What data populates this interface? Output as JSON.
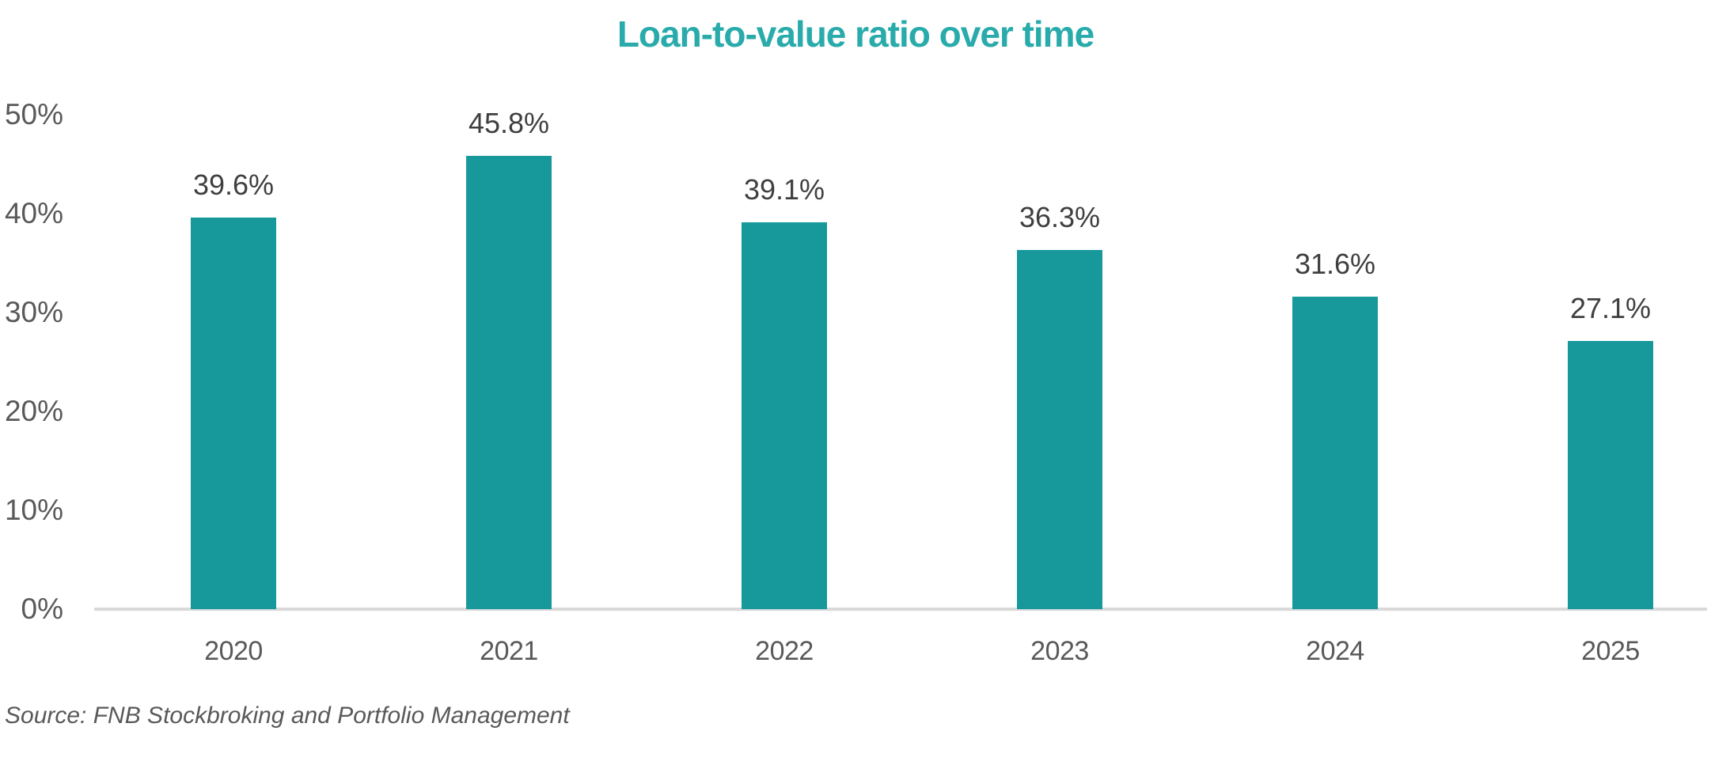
{
  "page": {
    "title": "Loan-to-value ratio over time",
    "source_note": "Source: FNB Stockbroking and Portfolio Management"
  },
  "colors": {
    "bar": "#17999C",
    "title_text": "#29ABAB",
    "data_label": "#3F3F3F",
    "axis_label": "#595959",
    "axis_line": "#D9D9D9",
    "background": "#FFFFFF"
  },
  "chart_data": {
    "type": "bar",
    "title": "Loan-to-value ratio over time",
    "categories": [
      "2020",
      "2021",
      "2022",
      "2023",
      "2024",
      "2025"
    ],
    "values": [
      39.6,
      45.8,
      39.1,
      36.3,
      31.6,
      27.1
    ],
    "data_labels": [
      "39.6%",
      "45.8%",
      "39.1%",
      "36.3%",
      "31.6%",
      "27.1%"
    ],
    "ylim": [
      0,
      50
    ],
    "yticks": [
      0,
      10,
      20,
      30,
      40,
      50
    ],
    "ytick_labels": [
      "0%",
      "10%",
      "20%",
      "30%",
      "40%",
      "50%"
    ],
    "xlabel": "",
    "ylabel": "",
    "grid": false,
    "legend_position": "none",
    "bar_color": "#17999C",
    "source": "Source: FNB Stockbroking and Portfolio Management"
  }
}
